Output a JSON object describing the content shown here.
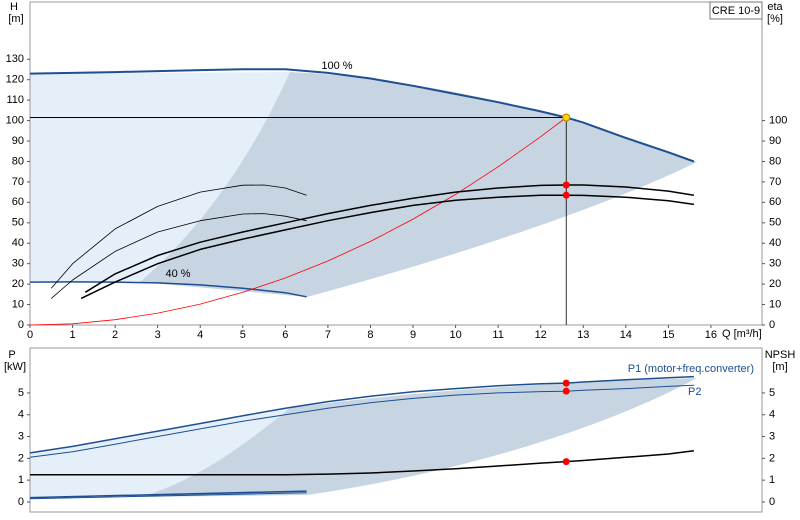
{
  "chart_data": [
    {
      "type": "line",
      "title": "CRE 10-9",
      "ylabel": "H",
      "yunit": "[m]",
      "y2label": "eta",
      "y2unit": "[%]",
      "xlabel": "Q [m³/h]",
      "annotations": [
        "100 %",
        "40 %"
      ],
      "xlim": [
        0,
        17.2
      ],
      "xticks": [
        0,
        1,
        2,
        3,
        4,
        5,
        6,
        7,
        8,
        9,
        10,
        11,
        12,
        13,
        14,
        15,
        16
      ],
      "ylim": [
        0,
        158
      ],
      "yticks": [
        0,
        10,
        20,
        30,
        40,
        50,
        60,
        70,
        80,
        90,
        100,
        110,
        120,
        130
      ],
      "y2lim": [
        0,
        158
      ],
      "y2ticks": [
        0,
        10,
        20,
        30,
        40,
        50,
        60,
        70,
        80,
        90,
        100
      ],
      "series": [
        {
          "color": "#1d4f91",
          "linewidth": 2,
          "x": [
            0,
            1,
            2,
            3,
            4,
            5,
            6,
            7,
            8,
            9,
            10,
            11,
            12,
            12.6,
            13,
            14,
            15,
            15.6
          ],
          "values": [
            123,
            123.3,
            123.7,
            124.2,
            124.7,
            125.1,
            125.1,
            123.3,
            120.6,
            117,
            113,
            109,
            104.5,
            101.5,
            99,
            91.5,
            84.5,
            80
          ]
        },
        {
          "color": "#1d4f91",
          "linewidth": 1.5,
          "x": [
            0,
            1,
            2,
            3,
            4,
            5,
            6,
            6.5
          ],
          "values": [
            21,
            21.1,
            21,
            20.6,
            19.6,
            18,
            15.8,
            13.8
          ]
        },
        {
          "color": "#ff0000",
          "linewidth": 0.8,
          "x": [
            0,
            1,
            2,
            3,
            4,
            5,
            6,
            7,
            8,
            9,
            10,
            11,
            12,
            12.6
          ],
          "values": [
            0,
            0.6,
            2.6,
            5.8,
            10.2,
            16,
            23,
            31.3,
            40.9,
            51.8,
            63.9,
            77.4,
            92.1,
            101.5
          ]
        },
        {
          "color": "#000000",
          "linewidth": 1.5,
          "axis": "y2",
          "x": [
            1.3,
            2,
            3,
            4,
            5,
            6,
            7,
            8,
            9,
            10,
            11,
            12,
            12.6,
            13,
            14,
            15,
            15.6
          ],
          "values": [
            16,
            25,
            34,
            40.5,
            45.5,
            50,
            54.5,
            58.5,
            62,
            65,
            67,
            68.3,
            68.5,
            68.5,
            67.5,
            65.5,
            63.5
          ]
        },
        {
          "color": "#000000",
          "linewidth": 1.5,
          "axis": "y2",
          "x": [
            1.2,
            2,
            3,
            4,
            5,
            6,
            7,
            8,
            9,
            10,
            11,
            12,
            12.6,
            13,
            14,
            15,
            15.6
          ],
          "values": [
            13,
            21,
            30,
            37,
            42,
            46.5,
            51,
            55,
            58.5,
            61,
            62.5,
            63.5,
            63.5,
            63.4,
            62.5,
            60.8,
            59
          ]
        },
        {
          "color": "#000000",
          "linewidth": 0.8,
          "axis": "y2",
          "x": [
            0.5,
            1,
            2,
            3,
            4,
            5,
            5.5,
            6,
            6.5
          ],
          "values": [
            18,
            30,
            47,
            58,
            65,
            68.4,
            68.5,
            67,
            63.5
          ]
        },
        {
          "color": "#000000",
          "linewidth": 0.8,
          "axis": "y2",
          "x": [
            0.5,
            1,
            2,
            3,
            4,
            5,
            5.5,
            6,
            6.5
          ],
          "values": [
            13,
            22,
            36,
            45.5,
            51,
            54.3,
            54.5,
            53.2,
            51
          ]
        }
      ],
      "duty_point": {
        "x": 12.6,
        "y": [
          101.5
        ],
        "y2": [
          68.5,
          63.5
        ],
        "color": "#ffd700",
        "marker_color": "#ff0000"
      }
    },
    {
      "type": "line",
      "ylabel": "P",
      "yunit": "[kW]",
      "y2label": "NPSH",
      "y2unit": "[m]",
      "annotations": [
        "P1 (motor+freq.converter)",
        "P2"
      ],
      "xlim": [
        0,
        17.2
      ],
      "ylim": [
        -0.46,
        7.06
      ],
      "yticks": [
        0,
        1,
        2,
        3,
        4,
        5
      ],
      "y2lim": [
        -0.46,
        7.06
      ],
      "y2ticks": [
        0,
        1,
        2,
        3,
        4,
        5
      ],
      "series": [
        {
          "color": "#1d4f91",
          "linewidth": 1.5,
          "x": [
            0,
            1,
            2,
            3,
            4,
            5,
            6,
            7,
            8,
            9,
            10,
            11,
            12,
            12.6,
            13,
            14,
            15,
            15.6
          ],
          "values": [
            2.25,
            2.55,
            2.9,
            3.25,
            3.6,
            3.95,
            4.3,
            4.6,
            4.85,
            5.05,
            5.2,
            5.33,
            5.42,
            5.45,
            5.5,
            5.6,
            5.7,
            5.75
          ]
        },
        {
          "color": "#1d4f91",
          "linewidth": 1,
          "x": [
            0,
            1,
            2,
            3,
            4,
            5,
            6,
            7,
            8,
            9,
            10,
            11,
            12,
            12.6,
            13,
            14,
            15,
            15.6
          ],
          "values": [
            2.05,
            2.3,
            2.65,
            3,
            3.35,
            3.7,
            4,
            4.3,
            4.55,
            4.75,
            4.9,
            5,
            5.06,
            5.08,
            5.12,
            5.2,
            5.3,
            5.35
          ]
        },
        {
          "color": "#000000",
          "linewidth": 1.5,
          "axis": "y2",
          "x": [
            0,
            1,
            2,
            3,
            4,
            5,
            6,
            7,
            8,
            9,
            10,
            11,
            12,
            12.6,
            13,
            14,
            15,
            15.6
          ],
          "values": [
            1.25,
            1.25,
            1.25,
            1.25,
            1.25,
            1.25,
            1.25,
            1.28,
            1.33,
            1.42,
            1.52,
            1.65,
            1.78,
            1.85,
            1.9,
            2.05,
            2.2,
            2.35
          ]
        },
        {
          "color": "#1d4f91",
          "linewidth": 1.5,
          "x": [
            0,
            6.5
          ],
          "values": [
            0.2,
            0.5
          ]
        },
        {
          "color": "#1d4f91",
          "linewidth": 1,
          "x": [
            0,
            6.5
          ],
          "values": [
            0.15,
            0.42
          ]
        }
      ],
      "duty_point": {
        "x": 12.6,
        "y": [
          5.45,
          5.08
        ],
        "y2": [
          1.85
        ],
        "marker_color": "#ff0000"
      }
    }
  ]
}
